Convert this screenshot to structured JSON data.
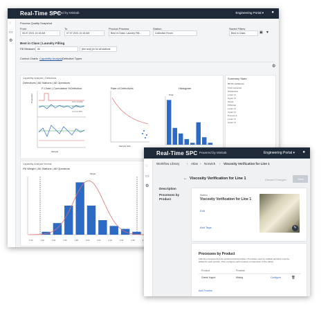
{
  "app": {
    "brand": "Real-Time SPC",
    "powered": "Powered by Minitab",
    "portal": "Engineering Portal ▾",
    "user_glyph": "👤"
  },
  "spc": {
    "snapshot_title": "Process Quality Snapshot",
    "from_label": "From",
    "from_value": "06.07.2021 10:15 AM",
    "to_label": "To",
    "to_value": "07.07.2021 10:15 AM",
    "product_process_label": "Product Process",
    "product_process_value": "Best in Class: Laundry Filli...",
    "station_label": "Station",
    "station_value": "Collection Room",
    "saved_filters_label": "Saved Filters",
    "saved_filters_value": "Best in Class",
    "title_main": "Best in Class | Laundry Filling",
    "measure_label": "Fill Measure",
    "measure_value": "All",
    "measure_all": "(the and) (in for all stations",
    "tabs": [
      "Control Charts",
      "Capability Analysis",
      "Defective Types"
    ],
    "card1_title": "Capability Analysis | Defectives",
    "card1_sub": "Defectives | All Stations | All Operators",
    "chart1_title": "P-Chart | Cumulative %Defective",
    "chart2_title": "Rate of Defectives",
    "chart3_title": "Histogram",
    "chart3_total": "Total",
    "chart1_x_label": "Sample",
    "chart2_x_label": "Sample Size",
    "chart1_y1": "Proportion",
    "chart1_y2": "%Defective",
    "chart2_y": "%Defective",
    "chart3_y": "Frequency",
    "chart1_ucl": "UCL=0.099",
    "chart1_pbar": "P=0.04",
    "chart1_lcl": "LCL=0.000",
    "summary_title": "Summary Stats",
    "summary_sub": "95.0% confidence",
    "summary_rows": [
      "Total Inspected",
      "%Defective",
      "Lower CI",
      "Upper CI",
      "Target",
      "PPM Def",
      "Lower CI",
      "Upper CI",
      "Process Z",
      "Lower CI",
      "Upper CI"
    ],
    "card2_title": "Capability Analysis Normal",
    "card2_sub": "Fill Weight | All Stations | All Operators",
    "card2_lsl": "LSL",
    "card2_usl": "USL",
    "card2_target": "Target",
    "card2_ticks": [
      "1.90",
      "1.92",
      "1.94",
      "1.96",
      "1.98",
      "2.00",
      "2.02",
      "2.04",
      "2.06",
      "2.08",
      "2.10"
    ]
  },
  "wl": {
    "breadcrumb": [
      "Workflow Library",
      "Atlas",
      "Norwich",
      "Viscosity Verification for Line 1"
    ],
    "page_title": "Viscosity Verification for Line 1",
    "discard_label": "Discard Changes",
    "save_label": "Save",
    "side": [
      "Description",
      "Processes by Product"
    ],
    "station_label": "Station",
    "station_value": "Viscosity Verification for Line 1",
    "edit_label": "Edit",
    "add_tags": "Add Tags",
    "processes_title": "Processes by Product",
    "processes_desc": "Add the processes that are performed at this station. Processes used by multiple products must be added for each product. Then configure each measure or inspection of the station.",
    "col_product": "Product",
    "col_process": "Process",
    "row_product": "Greek Yogurt",
    "row_process": "Mixing",
    "configure": "Configure",
    "add_process": "Add Process"
  },
  "chart_data": [
    {
      "type": "bar",
      "title": "Histogram",
      "categories": [
        "1",
        "2",
        "3",
        "4",
        "5",
        "6",
        "7",
        "8"
      ],
      "values": [
        24,
        9,
        6,
        3,
        1,
        12,
        4,
        1
      ],
      "ylabel": "Frequency"
    },
    {
      "type": "bar",
      "title": "Capability Analysis Normal",
      "categories": [
        "1.90",
        "1.92",
        "1.94",
        "1.96",
        "1.98",
        "2.00",
        "2.02",
        "2.04",
        "2.06",
        "2.08",
        "2.10"
      ],
      "values": [
        0,
        1,
        4,
        10,
        18,
        10,
        5,
        3,
        2,
        1,
        0
      ],
      "ylim": [
        0,
        20
      ]
    }
  ]
}
